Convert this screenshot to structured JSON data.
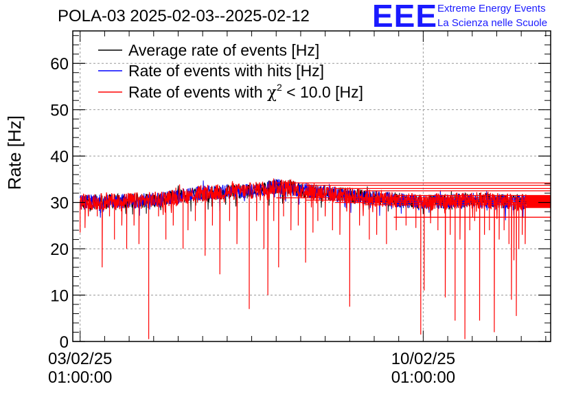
{
  "chart_data": {
    "type": "line",
    "title": "POLA-03 2025-02-03--2025-02-12",
    "ylabel": "Rate [Hz]",
    "xlabel": "",
    "ylim": [
      0,
      67
    ],
    "yticks": [
      0,
      10,
      20,
      30,
      40,
      50,
      60
    ],
    "xlim_days": [
      -0.15,
      9.6
    ],
    "xticks": [
      {
        "day": 0,
        "label_line1": "03/02/25",
        "label_line2": "01:00:00"
      },
      {
        "day": 7,
        "label_line1": "10/02/25",
        "label_line2": "01:00:00"
      }
    ],
    "grid": true,
    "legend_position": "top-left",
    "series": [
      {
        "name": "Average rate of events [Hz]",
        "color": "#000000",
        "profile": [
          [
            0.0,
            30.0
          ],
          [
            1.5,
            30.5
          ],
          [
            2.5,
            32.0
          ],
          [
            3.5,
            32.5
          ],
          [
            4.0,
            33.5
          ],
          [
            5.0,
            32.0
          ],
          [
            6.0,
            31.0
          ],
          [
            7.0,
            30.0
          ],
          [
            8.0,
            30.5
          ],
          [
            9.1,
            30.0
          ]
        ]
      },
      {
        "name": "Rate of events with hits [Hz]",
        "color": "#0000ff",
        "profile": [
          [
            0.0,
            30.0
          ],
          [
            1.5,
            30.5
          ],
          [
            2.5,
            32.0
          ],
          [
            3.5,
            32.5
          ],
          [
            4.0,
            33.5
          ],
          [
            5.0,
            32.0
          ],
          [
            6.0,
            31.0
          ],
          [
            7.0,
            30.0
          ],
          [
            8.0,
            30.5
          ],
          [
            9.1,
            30.0
          ]
        ]
      },
      {
        "name_prefix": "Rate of events with ",
        "name_chi": "χ",
        "name_sup": "2",
        "name_suffix": " < 10.0 [Hz]",
        "color": "#ff0000",
        "profile": [
          [
            0.0,
            30.0
          ],
          [
            1.5,
            30.5
          ],
          [
            2.5,
            32.0
          ],
          [
            3.5,
            32.5
          ],
          [
            4.0,
            33.5
          ],
          [
            5.0,
            32.0
          ],
          [
            6.0,
            31.0
          ],
          [
            7.0,
            30.0
          ],
          [
            8.0,
            30.5
          ],
          [
            9.1,
            30.0
          ]
        ],
        "dips": [
          [
            0.0,
            23.5
          ],
          [
            0.1,
            24.5
          ],
          [
            0.35,
            27.0
          ],
          [
            0.45,
            16.0
          ],
          [
            0.6,
            27.0
          ],
          [
            0.7,
            22.0
          ],
          [
            0.85,
            25.0
          ],
          [
            0.95,
            20.0
          ],
          [
            1.1,
            25.0
          ],
          [
            1.2,
            21.0
          ],
          [
            1.4,
            0.5
          ],
          [
            1.6,
            27.0
          ],
          [
            1.75,
            22.0
          ],
          [
            1.9,
            25.0
          ],
          [
            2.1,
            20.0
          ],
          [
            2.2,
            24.0
          ],
          [
            2.35,
            26.0
          ],
          [
            2.55,
            18.5
          ],
          [
            2.7,
            25.0
          ],
          [
            2.85,
            14.5
          ],
          [
            3.05,
            26.0
          ],
          [
            3.2,
            21.0
          ],
          [
            3.45,
            7.0
          ],
          [
            3.6,
            26.0
          ],
          [
            3.75,
            20.0
          ],
          [
            3.83,
            10.0
          ],
          [
            3.95,
            26.0
          ],
          [
            4.05,
            16.0
          ],
          [
            4.15,
            27.0
          ],
          [
            4.3,
            24.0
          ],
          [
            4.45,
            25.0
          ],
          [
            4.6,
            17.0
          ],
          [
            4.75,
            23.5
          ],
          [
            4.85,
            26.0
          ],
          [
            5.0,
            27.0
          ],
          [
            5.15,
            24.0
          ],
          [
            5.3,
            23.0
          ],
          [
            5.5,
            7.5
          ],
          [
            5.7,
            25.0
          ],
          [
            5.9,
            22.0
          ],
          [
            6.05,
            23.0
          ],
          [
            6.25,
            21.0
          ],
          [
            6.45,
            24.0
          ],
          [
            6.65,
            25.0
          ],
          [
            6.85,
            24.5
          ],
          [
            6.95,
            1.5
          ],
          [
            7.02,
            11.0
          ],
          [
            7.15,
            25.5
          ],
          [
            7.3,
            24.0
          ],
          [
            7.45,
            9.5
          ],
          [
            7.55,
            23.0
          ],
          [
            7.65,
            4.5
          ],
          [
            7.75,
            22.0
          ],
          [
            7.85,
            0.5
          ],
          [
            7.95,
            24.0
          ],
          [
            8.05,
            26.0
          ],
          [
            8.15,
            4.5
          ],
          [
            8.25,
            23.0
          ],
          [
            8.35,
            24.0
          ],
          [
            8.45,
            2.0
          ],
          [
            8.55,
            22.0
          ],
          [
            8.65,
            24.0
          ],
          [
            8.75,
            21.0
          ],
          [
            8.8,
            9.0
          ],
          [
            8.85,
            17.5
          ],
          [
            8.9,
            5.5
          ],
          [
            8.95,
            20.0
          ],
          [
            9.02,
            23.0
          ],
          [
            9.08,
            21.0
          ]
        ],
        "flat_lines": [
          34.2,
          33.7,
          33.0,
          32.5,
          31.5,
          31.0,
          30.5,
          30.0,
          29.5,
          26.8
        ]
      }
    ]
  },
  "header": {
    "title": "POLA-03 2025-02-03--2025-02-12",
    "logo_text": "EEE",
    "logo_line1": "Extreme Energy Events",
    "logo_line2": "La Scienza nelle Scuole"
  },
  "colors": {
    "average": "#000000",
    "hits": "#0000ff",
    "chi2": "#ff0000",
    "logo": "#1a1aff",
    "grid": "#999999"
  }
}
